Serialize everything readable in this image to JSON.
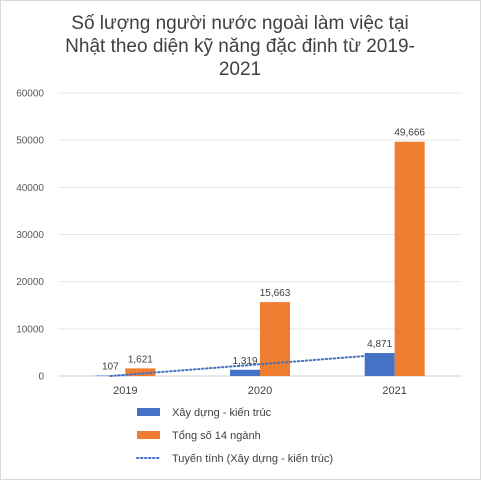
{
  "chart_data": {
    "type": "bar",
    "title_lines": [
      "Số lượng người nước ngoài làm việc tại",
      "Nhật theo diện kỹ năng đặc định từ 2019-",
      "2021"
    ],
    "categories": [
      "2019",
      "2020",
      "2021"
    ],
    "series": [
      {
        "name": "Xây dựng - kiến trúc",
        "values": [
          107,
          1319,
          4871
        ],
        "labels": [
          "107",
          "1,319",
          "4,871"
        ],
        "color": "#4472c4"
      },
      {
        "name": "Tổng số 14 ngành",
        "values": [
          1621,
          15663,
          49666
        ],
        "labels": [
          "1,621",
          "15,663",
          "49,666"
        ],
        "color": "#ed7d31"
      }
    ],
    "trendline": {
      "name": "Tuyến tính (Xây dựng - kiến trúc)",
      "type": "linear",
      "of_series": "Xây dựng - kiến trúc",
      "color": "#4472c4",
      "style": "dotted"
    },
    "ylim": [
      0,
      60000
    ],
    "yticks": [
      "0",
      "10000",
      "20000",
      "30000",
      "40000",
      "50000",
      "60000"
    ],
    "grid": true,
    "legend_position": "bottom-left"
  }
}
